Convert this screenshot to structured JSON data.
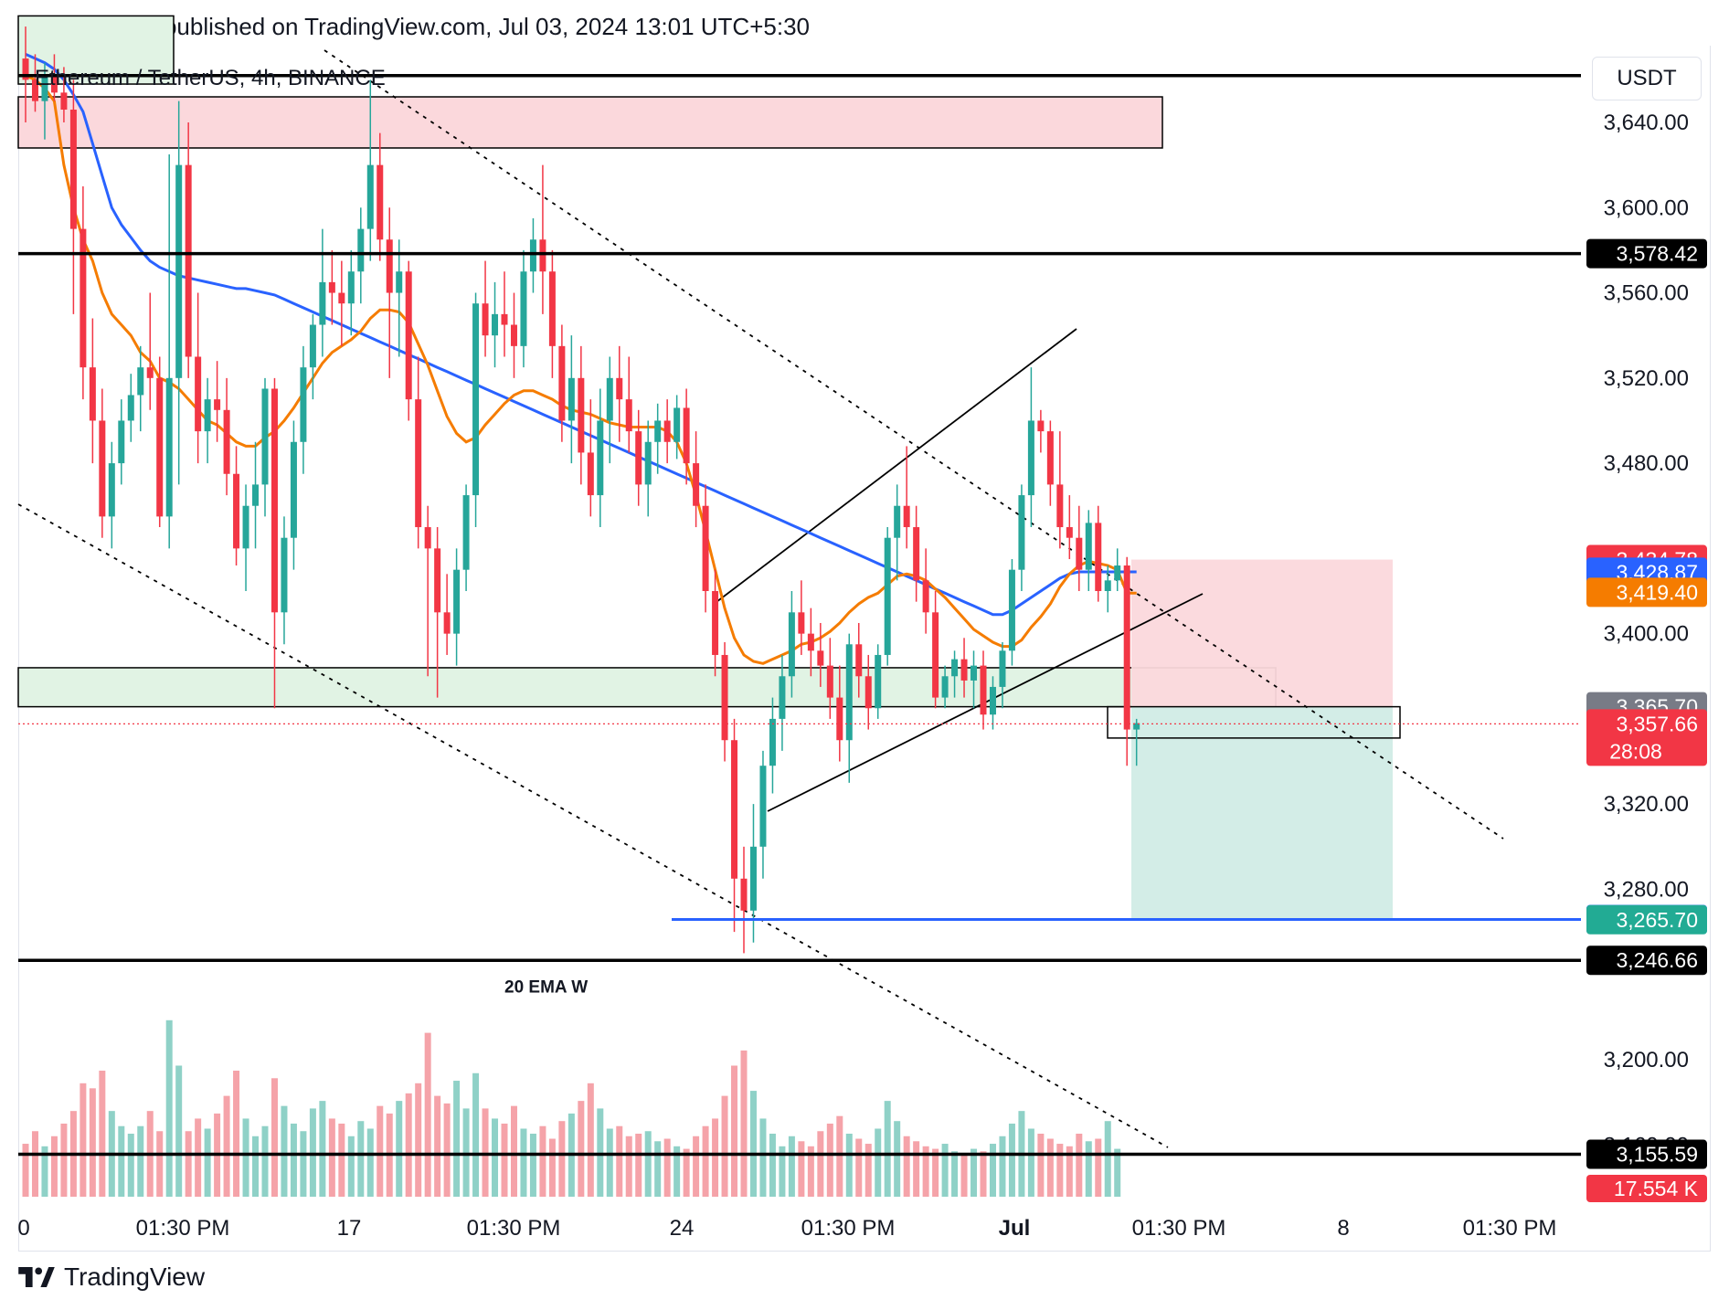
{
  "header": {
    "published_line": "anupamezrvr published on TradingView.com, Jul 03, 2024 13:01 UTC+5:30"
  },
  "symbol": "Ethereum / TetherUS, 4h, BINANCE",
  "currency": "USDT",
  "footer": {
    "brand": "TradingView"
  },
  "colors": {
    "bull": "#26a69a",
    "bear": "#f23645",
    "ema_fast": "#f57c00",
    "ema_slow": "#2962ff",
    "supply_zone": "#fbd8dc",
    "demand_zone": "#e1f3e4"
  },
  "chart_data": {
    "type": "candlestick",
    "timeframe": "4h",
    "ylim": [
      3150,
      3670
    ],
    "y_ticks": [
      "3,640.00",
      "3,600.00",
      "3,560.00",
      "3,520.00",
      "3,480.00",
      "3,400.00",
      "3,320.00",
      "3,280.00",
      "3,200.00",
      "3,160.00"
    ],
    "x_ticks": [
      "0",
      "01:30 PM",
      "17",
      "01:30 PM",
      "24",
      "01:30 PM",
      "Jul",
      "01:30 PM",
      "8",
      "01:30 PM"
    ],
    "price_badges": [
      {
        "label": "3,578.42",
        "value": 3578.42,
        "color": "#000000"
      },
      {
        "label": "3,434.78",
        "value": 3434.78,
        "color": "#f23645"
      },
      {
        "label": "3,428.87",
        "value": 3428.87,
        "color": "#2962ff"
      },
      {
        "label": "3,419.40",
        "value": 3419.4,
        "color": "#f57c00"
      },
      {
        "label": "3,365.70",
        "value": 3365.7,
        "color": "#787b86"
      },
      {
        "label": "3,357.66",
        "value": 3357.66,
        "color": "#f23645",
        "sub": "28:08"
      },
      {
        "label": "3,265.83",
        "value": 3265.83,
        "color": "#2962ff"
      },
      {
        "label": "3,265.70",
        "value": 3265.7,
        "color": "#22ab94"
      },
      {
        "label": "3,246.66",
        "value": 3246.66,
        "color": "#000000"
      },
      {
        "label": "3,155.59",
        "value": 3155.59,
        "color": "#000000"
      }
    ],
    "volume_badge": {
      "label": "17.554 K",
      "color": "#f23645"
    },
    "horizontal_levels": [
      3662,
      3578.42,
      3246.66,
      3155.59
    ],
    "target_level": 3265.83,
    "current_price": 3357.66,
    "annotations": [
      {
        "text": "20 EMA W",
        "price": 3235
      }
    ],
    "candles": [
      [
        3670,
        3685,
        3640,
        3660
      ],
      [
        3660,
        3672,
        3645,
        3650
      ],
      [
        3650,
        3668,
        3632,
        3662
      ],
      [
        3662,
        3672,
        3650,
        3654
      ],
      [
        3654,
        3666,
        3640,
        3646
      ],
      [
        3646,
        3660,
        3550,
        3590
      ],
      [
        3590,
        3610,
        3510,
        3525
      ],
      [
        3525,
        3548,
        3480,
        3500
      ],
      [
        3500,
        3515,
        3445,
        3455
      ],
      [
        3455,
        3490,
        3440,
        3480
      ],
      [
        3480,
        3510,
        3470,
        3500
      ],
      [
        3500,
        3522,
        3490,
        3512
      ],
      [
        3512,
        3535,
        3495,
        3525
      ],
      [
        3525,
        3560,
        3505,
        3520
      ],
      [
        3520,
        3530,
        3450,
        3455
      ],
      [
        3455,
        3625,
        3440,
        3520
      ],
      [
        3520,
        3650,
        3470,
        3620
      ],
      [
        3620,
        3640,
        3520,
        3530
      ],
      [
        3530,
        3560,
        3480,
        3495
      ],
      [
        3495,
        3520,
        3480,
        3510
      ],
      [
        3510,
        3528,
        3490,
        3505
      ],
      [
        3505,
        3520,
        3465,
        3475
      ],
      [
        3475,
        3488,
        3432,
        3440
      ],
      [
        3440,
        3470,
        3420,
        3460
      ],
      [
        3460,
        3490,
        3440,
        3470
      ],
      [
        3470,
        3520,
        3455,
        3515
      ],
      [
        3515,
        3520,
        3365,
        3410
      ],
      [
        3410,
        3455,
        3395,
        3445
      ],
      [
        3445,
        3500,
        3430,
        3490
      ],
      [
        3490,
        3535,
        3475,
        3525
      ],
      [
        3525,
        3550,
        3510,
        3545
      ],
      [
        3545,
        3590,
        3530,
        3565
      ],
      [
        3565,
        3580,
        3545,
        3560
      ],
      [
        3560,
        3575,
        3535,
        3555
      ],
      [
        3555,
        3580,
        3540,
        3570
      ],
      [
        3570,
        3600,
        3555,
        3590
      ],
      [
        3590,
        3660,
        3575,
        3620
      ],
      [
        3620,
        3635,
        3575,
        3585
      ],
      [
        3585,
        3600,
        3520,
        3560
      ],
      [
        3560,
        3585,
        3530,
        3570
      ],
      [
        3570,
        3575,
        3500,
        3510
      ],
      [
        3510,
        3530,
        3440,
        3450
      ],
      [
        3450,
        3460,
        3380,
        3440
      ],
      [
        3440,
        3450,
        3370,
        3410
      ],
      [
        3410,
        3428,
        3390,
        3400
      ],
      [
        3400,
        3440,
        3385,
        3430
      ],
      [
        3430,
        3470,
        3420,
        3465
      ],
      [
        3465,
        3560,
        3450,
        3555
      ],
      [
        3555,
        3575,
        3530,
        3540
      ],
      [
        3540,
        3565,
        3525,
        3550
      ],
      [
        3550,
        3570,
        3530,
        3545
      ],
      [
        3545,
        3560,
        3520,
        3535
      ],
      [
        3535,
        3580,
        3525,
        3570
      ],
      [
        3570,
        3595,
        3560,
        3585
      ],
      [
        3585,
        3620,
        3550,
        3570
      ],
      [
        3570,
        3580,
        3520,
        3535
      ],
      [
        3535,
        3545,
        3490,
        3500
      ],
      [
        3500,
        3540,
        3480,
        3520
      ],
      [
        3520,
        3535,
        3470,
        3485
      ],
      [
        3485,
        3510,
        3455,
        3465
      ],
      [
        3465,
        3515,
        3450,
        3500
      ],
      [
        3500,
        3530,
        3480,
        3520
      ],
      [
        3520,
        3535,
        3490,
        3510
      ],
      [
        3510,
        3530,
        3485,
        3495
      ],
      [
        3495,
        3505,
        3460,
        3470
      ],
      [
        3470,
        3500,
        3455,
        3490
      ],
      [
        3490,
        3508,
        3475,
        3500
      ],
      [
        3500,
        3510,
        3480,
        3490
      ],
      [
        3490,
        3512,
        3482,
        3506
      ],
      [
        3506,
        3515,
        3470,
        3480
      ],
      [
        3480,
        3495,
        3450,
        3460
      ],
      [
        3460,
        3470,
        3410,
        3420
      ],
      [
        3420,
        3430,
        3380,
        3390
      ],
      [
        3390,
        3396,
        3340,
        3350
      ],
      [
        3350,
        3360,
        3260,
        3285
      ],
      [
        3285,
        3300,
        3250,
        3270
      ],
      [
        3270,
        3320,
        3255,
        3300
      ],
      [
        3300,
        3345,
        3285,
        3338
      ],
      [
        3338,
        3370,
        3325,
        3360
      ],
      [
        3360,
        3390,
        3345,
        3380
      ],
      [
        3380,
        3420,
        3370,
        3410
      ],
      [
        3410,
        3425,
        3390,
        3400
      ],
      [
        3400,
        3412,
        3380,
        3392
      ],
      [
        3392,
        3405,
        3375,
        3385
      ],
      [
        3385,
        3398,
        3360,
        3370
      ],
      [
        3370,
        3385,
        3340,
        3350
      ],
      [
        3350,
        3400,
        3330,
        3395
      ],
      [
        3395,
        3405,
        3370,
        3380
      ],
      [
        3380,
        3390,
        3355,
        3365
      ],
      [
        3365,
        3395,
        3360,
        3390
      ],
      [
        3390,
        3450,
        3385,
        3445
      ],
      [
        3445,
        3470,
        3425,
        3460
      ],
      [
        3460,
        3488,
        3440,
        3450
      ],
      [
        3450,
        3460,
        3415,
        3425
      ],
      [
        3425,
        3440,
        3400,
        3410
      ],
      [
        3410,
        3420,
        3365,
        3370
      ],
      [
        3370,
        3385,
        3365,
        3380
      ],
      [
        3380,
        3392,
        3370,
        3388
      ],
      [
        3388,
        3398,
        3370,
        3378
      ],
      [
        3378,
        3392,
        3365,
        3385
      ],
      [
        3385,
        3392,
        3355,
        3362
      ],
      [
        3362,
        3380,
        3355,
        3375
      ],
      [
        3375,
        3396,
        3365,
        3392
      ],
      [
        3392,
        3435,
        3385,
        3430
      ],
      [
        3430,
        3470,
        3420,
        3465
      ],
      [
        3465,
        3525,
        3450,
        3500
      ],
      [
        3500,
        3505,
        3485,
        3495
      ],
      [
        3495,
        3500,
        3460,
        3470
      ],
      [
        3470,
        3495,
        3440,
        3450
      ],
      [
        3450,
        3465,
        3435,
        3445
      ],
      [
        3445,
        3460,
        3420,
        3430
      ],
      [
        3430,
        3458,
        3420,
        3452
      ],
      [
        3452,
        3460,
        3415,
        3420
      ],
      [
        3420,
        3432,
        3410,
        3425
      ],
      [
        3425,
        3440,
        3420,
        3432
      ],
      [
        3432,
        3436,
        3338,
        3355
      ],
      [
        3355,
        3360,
        3338,
        3358
      ]
    ],
    "volume": [
      2.1,
      2.6,
      2.0,
      2.4,
      2.9,
      3.4,
      4.5,
      4.3,
      5.0,
      3.4,
      2.8,
      2.5,
      2.8,
      3.4,
      2.6,
      7.0,
      5.2,
      2.6,
      3.1,
      2.7,
      3.3,
      4.0,
      5.0,
      3.1,
      2.4,
      2.8,
      4.7,
      3.6,
      2.9,
      2.6,
      3.5,
      3.8,
      3.1,
      2.9,
      2.4,
      3.0,
      2.7,
      3.6,
      3.3,
      3.8,
      4.1,
      4.5,
      6.5,
      4.0,
      3.7,
      4.6,
      3.5,
      4.9,
      3.5,
      3.1,
      2.9,
      3.6,
      2.7,
      2.5,
      2.8,
      2.3,
      3.0,
      3.3,
      3.8,
      4.5,
      3.5,
      2.7,
      2.8,
      2.4,
      2.5,
      2.6,
      2.2,
      2.3,
      2.0,
      1.9,
      2.4,
      2.8,
      3.1,
      4.0,
      5.2,
      5.8,
      4.2,
      3.1,
      2.5,
      2.0,
      2.4,
      2.2,
      2.0,
      2.6,
      2.9,
      3.2,
      2.5,
      2.3,
      2.1,
      2.7,
      3.8,
      3.0,
      2.4,
      2.2,
      2.0,
      1.9,
      2.1,
      1.8,
      1.7,
      1.9,
      1.8,
      2.1,
      2.4,
      2.9,
      3.4,
      2.7,
      2.5,
      2.3,
      2.1,
      2.0,
      2.5,
      2.2,
      2.3,
      3.0,
      1.9
    ],
    "ema_fast": [
      3662,
      3660,
      3656,
      3650,
      3620,
      3600,
      3585,
      3575,
      3560,
      3550,
      3545,
      3540,
      3532,
      3528,
      3520,
      3518,
      3515,
      3510,
      3505,
      3500,
      3498,
      3494,
      3490,
      3488,
      3488,
      3492,
      3495,
      3500,
      3506,
      3513,
      3520,
      3527,
      3532,
      3535,
      3538,
      3542,
      3548,
      3552,
      3552,
      3551,
      3546,
      3536,
      3526,
      3514,
      3502,
      3494,
      3490,
      3492,
      3498,
      3503,
      3508,
      3512,
      3514,
      3514,
      3512,
      3510,
      3507,
      3505,
      3504,
      3503,
      3501,
      3499,
      3498,
      3497,
      3497,
      3497,
      3497,
      3495,
      3490,
      3480,
      3465,
      3448,
      3430,
      3412,
      3398,
      3390,
      3387,
      3386,
      3388,
      3390,
      3392,
      3395,
      3396,
      3398,
      3401,
      3405,
      3410,
      3414,
      3417,
      3419,
      3423,
      3427,
      3428,
      3427,
      3425,
      3421,
      3417,
      3412,
      3407,
      3402,
      3399,
      3396,
      3394,
      3394,
      3397,
      3403,
      3408,
      3414,
      3422,
      3428,
      3432,
      3434,
      3433,
      3432,
      3430,
      3419,
      3419
    ],
    "ema_slow": [
      3672,
      3670,
      3668,
      3665,
      3660,
      3653,
      3645,
      3630,
      3615,
      3600,
      3592,
      3586,
      3580,
      3575,
      3572,
      3570,
      3568,
      3567,
      3566,
      3565,
      3564,
      3563,
      3562,
      3562,
      3561,
      3560,
      3559,
      3557,
      3555,
      3553,
      3551,
      3549,
      3547,
      3545,
      3543,
      3541,
      3539,
      3537,
      3535,
      3533,
      3531,
      3529,
      3527,
      3525,
      3523,
      3521,
      3519,
      3517,
      3515,
      3513,
      3511,
      3509,
      3507,
      3505,
      3503,
      3501,
      3499,
      3497,
      3495,
      3493,
      3491,
      3489,
      3487,
      3485,
      3483,
      3481,
      3479,
      3477,
      3475,
      3473,
      3471,
      3469,
      3467,
      3465,
      3463,
      3461,
      3459,
      3457,
      3455,
      3453,
      3451,
      3449,
      3447,
      3445,
      3443,
      3441,
      3439,
      3437,
      3435,
      3433,
      3431,
      3429,
      3427,
      3425,
      3423,
      3421,
      3419,
      3417,
      3415,
      3413,
      3411,
      3409,
      3409,
      3411,
      3414,
      3417,
      3420,
      3423,
      3426,
      3428,
      3429,
      3429,
      3429,
      3429,
      3429,
      3429,
      3429
    ]
  }
}
